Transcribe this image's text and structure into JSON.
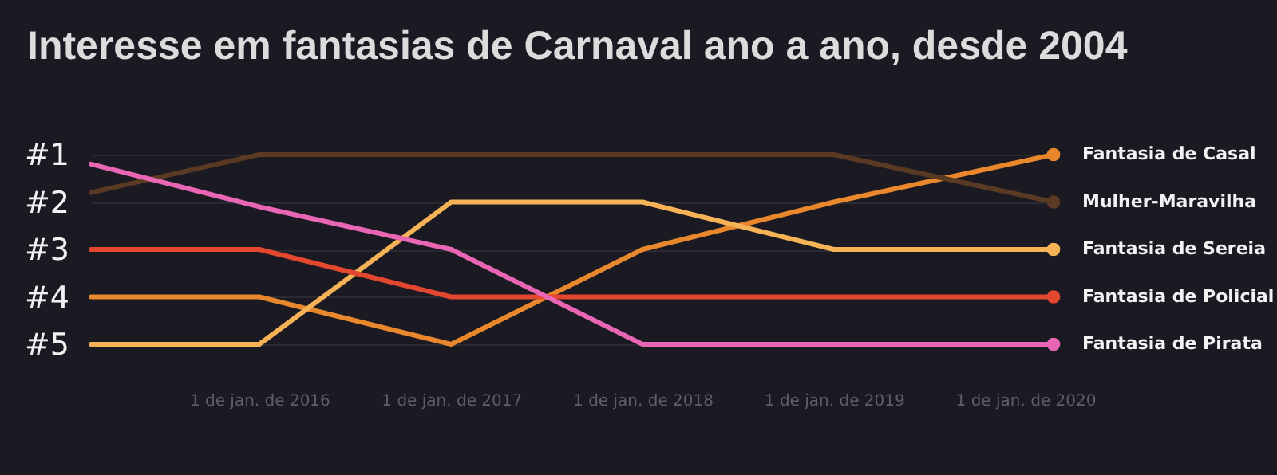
{
  "chart_data": {
    "type": "line",
    "title": "Interesse em fantasias de Carnaval ano a ano, desde 2004",
    "x": [
      "2015-02-14",
      "2016-01-01",
      "2017-01-01",
      "2018-01-01",
      "2019-01-01",
      "2020-02-24"
    ],
    "xlim": [
      "2015-02-14",
      "2020-02-24"
    ],
    "xticks": [
      {
        "value": "2016-01-01",
        "label": "1 de jan. de 2016"
      },
      {
        "value": "2017-01-01",
        "label": "1 de jan. de 2017"
      },
      {
        "value": "2018-01-01",
        "label": "1 de jan. de 2018"
      },
      {
        "value": "2019-01-01",
        "label": "1 de jan. de 2019"
      },
      {
        "value": "2020-01-01",
        "label": "1 de jan. de 2020"
      }
    ],
    "ylim": [
      5,
      1
    ],
    "yticks": [
      {
        "value": 1,
        "label": "#1"
      },
      {
        "value": 2,
        "label": "#2"
      },
      {
        "value": 3,
        "label": "#3"
      },
      {
        "value": 4,
        "label": "#4"
      },
      {
        "value": 5,
        "label": "#5"
      }
    ],
    "grid": "y",
    "line_style": "solid",
    "series": [
      {
        "name": "Fantasia de Casal",
        "color": "#e8872b",
        "values": [
          4,
          4,
          5,
          3,
          2,
          1
        ]
      },
      {
        "name": "Mulher-Maravilha",
        "color": "#5a3a22",
        "values": [
          1.8,
          1,
          1,
          1,
          1,
          2
        ]
      },
      {
        "name": "Fantasia de Sereia",
        "color": "#f6b256",
        "values": [
          5,
          5,
          2,
          2,
          3,
          3
        ]
      },
      {
        "name": "Fantasia de Policial",
        "color": "#e4472f",
        "values": [
          3,
          3,
          4,
          4,
          4,
          4
        ]
      },
      {
        "name": "Fantasia de Pirata",
        "color": "#e866b4",
        "values": [
          1.2,
          2.1,
          3,
          5,
          5,
          5
        ]
      }
    ]
  }
}
